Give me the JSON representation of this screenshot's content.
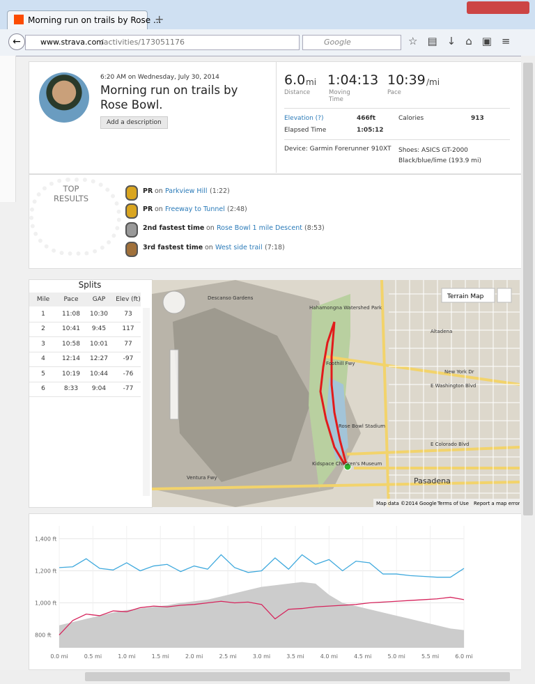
{
  "browser": {
    "tab_title": "Morning run on trails by Rose ...",
    "url_host": "www.strava.com",
    "url_path": "/activities/173051176",
    "search_placeholder": "Google"
  },
  "activity": {
    "time": "6:20 AM on Wednesday, July 30, 2014",
    "title": "Morning run on trails by Rose Bowl.",
    "add_description": "Add a description",
    "stats": [
      {
        "value": "6.0",
        "unit": "mi",
        "label": "Distance"
      },
      {
        "value": "1:04:13",
        "unit": "",
        "label": "Moving Time"
      },
      {
        "value": "10:39",
        "unit": "/mi",
        "label": "Pace"
      }
    ],
    "details": {
      "elevation_label": "Elevation (?)",
      "elevation": "466ft",
      "calories_label": "Calories",
      "calories": "913",
      "elapsed_label": "Elapsed Time",
      "elapsed": "1:05:12",
      "device": "Device: Garmin Forerunner 910XT",
      "shoes": "Shoes: ASICS GT-2000 Black/blue/lime (193.9 mi)"
    }
  },
  "top_results": {
    "heading": "TOP RESULTS",
    "items": [
      {
        "rank": "PR",
        "on": "on",
        "segment": "Parkview Hill",
        "time": "(1:22)"
      },
      {
        "rank": "PR",
        "on": "on",
        "segment": "Freeway to Tunnel",
        "time": "(2:48)"
      },
      {
        "rank": "2nd fastest time",
        "on": "on",
        "segment": "Rose Bowl 1 mile Descent",
        "time": "(8:53)"
      },
      {
        "rank": "3rd fastest time",
        "on": "on",
        "segment": "West side trail",
        "time": "(7:18)"
      }
    ]
  },
  "splits": {
    "title": "Splits",
    "columns": [
      "Mile",
      "Pace",
      "GAP",
      "Elev (ft)"
    ],
    "rows": [
      [
        "1",
        "11:08",
        "10:30",
        "73"
      ],
      [
        "2",
        "10:41",
        "9:45",
        "117"
      ],
      [
        "3",
        "10:58",
        "10:01",
        "77"
      ],
      [
        "4",
        "12:14",
        "12:27",
        "-97"
      ],
      [
        "5",
        "10:19",
        "10:44",
        "-76"
      ],
      [
        "6",
        "8:33",
        "9:04",
        "-77"
      ]
    ]
  },
  "map": {
    "terrain_button": "Terrain Map",
    "attribution": "Map data ©2014 Google",
    "terms": "Terms of Use",
    "report": "Report a map error",
    "labels": [
      "Hahamongna Watershed Park",
      "Rose Bowl Stadium",
      "Pasadena",
      "Descanso Gardens",
      "Altadena",
      "Foothill Fwy",
      "Ventura Fwy",
      "E Washington Blvd",
      "E Colorado Blvd",
      "New York Dr",
      "Kidspace Children's Museum"
    ]
  },
  "elevation_chart": {
    "type": "line",
    "x": [
      0,
      0.2,
      0.4,
      0.6,
      0.8,
      1.0,
      1.2,
      1.4,
      1.6,
      1.8,
      2.0,
      2.2,
      2.4,
      2.6,
      2.8,
      3.0,
      3.2,
      3.4,
      3.6,
      3.8,
      4.0,
      4.2,
      4.4,
      4.6,
      4.8,
      5.0,
      5.2,
      5.4,
      5.6,
      5.8,
      6.0
    ],
    "area": {
      "color": "#cccccc",
      "values": [
        860,
        880,
        900,
        920,
        940,
        955,
        965,
        975,
        985,
        1000,
        1010,
        1020,
        1040,
        1060,
        1080,
        1100,
        1110,
        1120,
        1130,
        1120,
        1050,
        1000,
        980,
        960,
        940,
        920,
        900,
        880,
        860,
        840,
        830
      ]
    },
    "series": [
      {
        "color": "#3fa9dd",
        "values": [
          1220,
          1225,
          1275,
          1215,
          1205,
          1250,
          1200,
          1230,
          1240,
          1195,
          1230,
          1210,
          1300,
          1220,
          1190,
          1200,
          1280,
          1210,
          1300,
          1240,
          1270,
          1200,
          1260,
          1250,
          1180,
          1180,
          1170,
          1165,
          1160,
          1160,
          1215
        ]
      },
      {
        "color": "#d6245c",
        "values": [
          800,
          890,
          930,
          920,
          950,
          945,
          970,
          980,
          975,
          985,
          990,
          1000,
          1010,
          1000,
          1005,
          990,
          900,
          960,
          965,
          975,
          980,
          985,
          990,
          1000,
          1005,
          1010,
          1015,
          1020,
          1025,
          1035,
          1020
        ]
      }
    ],
    "xlim": [
      0,
      6
    ],
    "ylim": [
      720,
      1480
    ],
    "xticks": [
      {
        "value": 0,
        "label": "0.0 mi"
      },
      {
        "value": 0.5,
        "label": "0.5 mi"
      },
      {
        "value": 1,
        "label": "1.0 mi"
      },
      {
        "value": 1.5,
        "label": "1.5 mi"
      },
      {
        "value": 2,
        "label": "2.0 mi"
      },
      {
        "value": 2.5,
        "label": "2.5 mi"
      },
      {
        "value": 3,
        "label": "3.0 mi"
      },
      {
        "value": 3.5,
        "label": "3.5 mi"
      },
      {
        "value": 4,
        "label": "4.0 mi"
      },
      {
        "value": 4.5,
        "label": "4.5 mi"
      },
      {
        "value": 5,
        "label": "5.0 mi"
      },
      {
        "value": 5.5,
        "label": "5.5 mi"
      },
      {
        "value": 6,
        "label": "6.0 mi"
      }
    ],
    "yticks": [
      {
        "value": 800,
        "label": "800 ft"
      },
      {
        "value": 1000,
        "label": "1,000 ft"
      },
      {
        "value": 1200,
        "label": "1,200 ft"
      },
      {
        "value": 1400,
        "label": "1,400 ft"
      }
    ],
    "grid": true
  }
}
